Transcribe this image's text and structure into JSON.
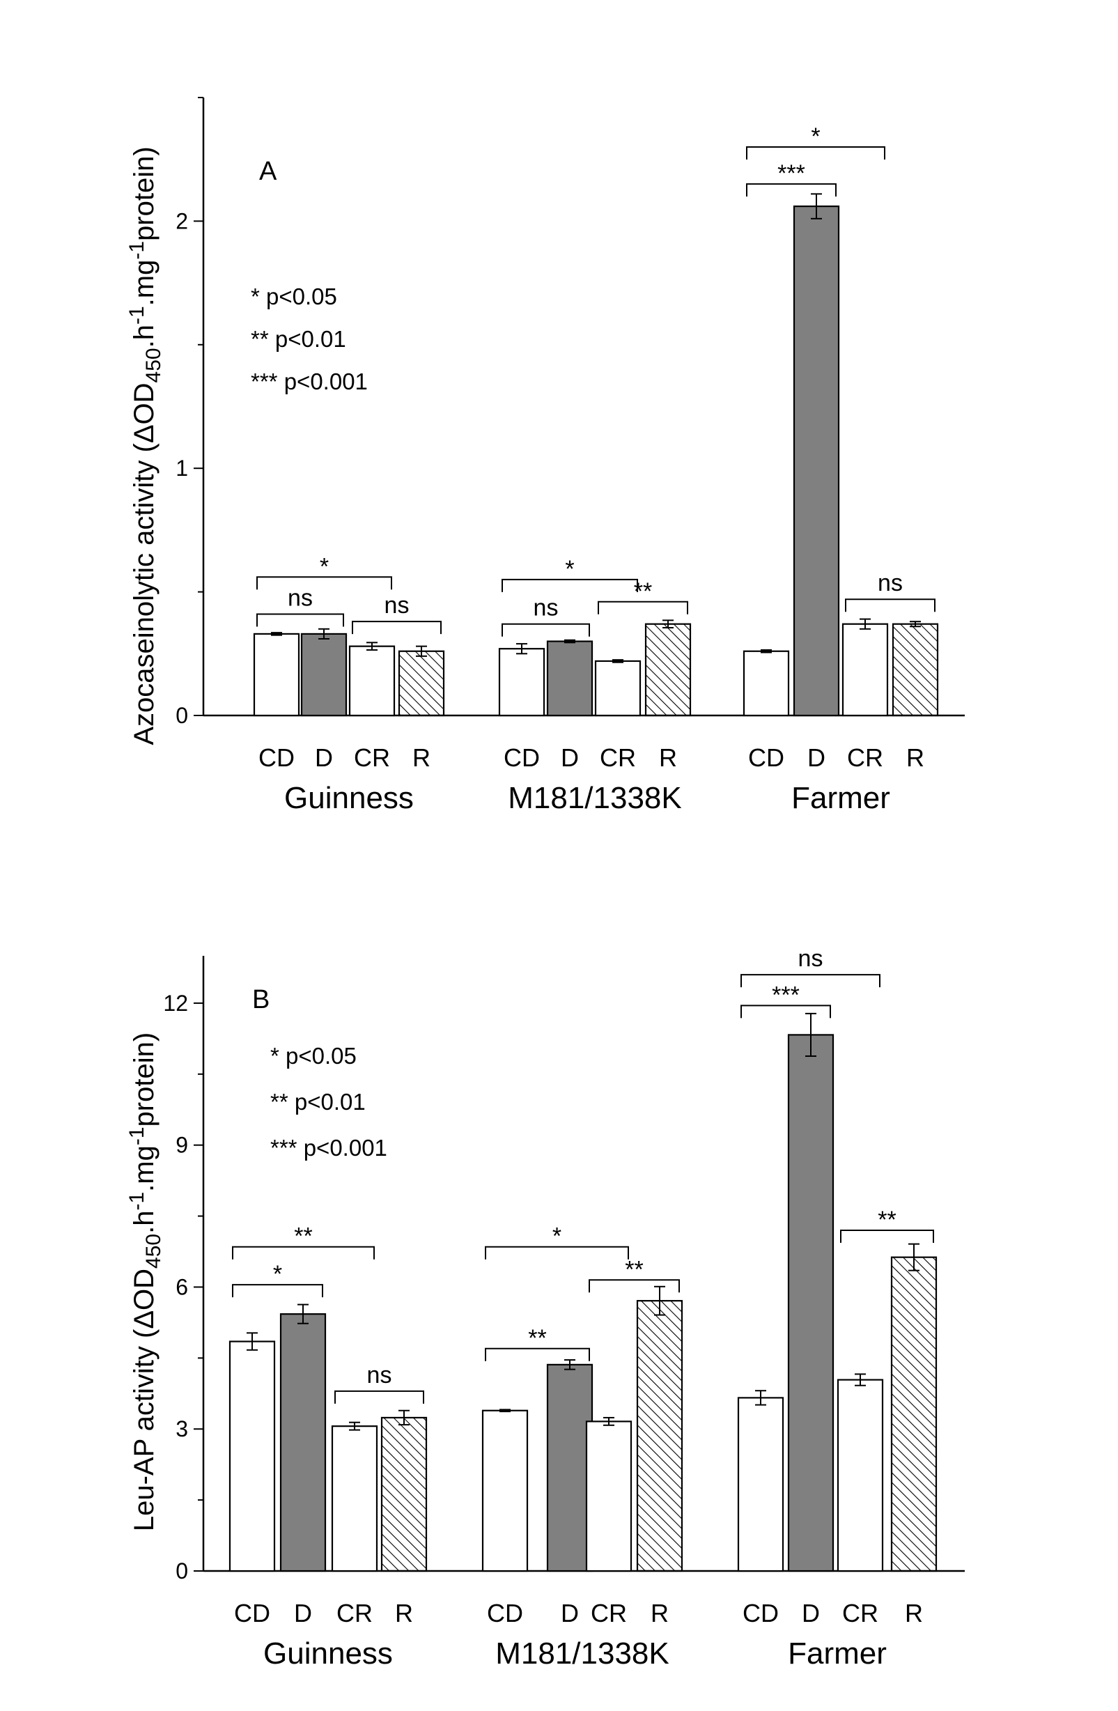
{
  "colors": {
    "control": "#ffffff",
    "drought": "#808080",
    "rehydration_hatch": "#000000",
    "axis": "#000000"
  },
  "chart_data": [
    {
      "type": "bar",
      "panel_label": "A",
      "ylabel": "Azocaseinolytic activity  (ΔOD450.h-1.mg-1protein)",
      "ylabel_parts": {
        "pre": "Azocaseinolytic activity  (ΔOD",
        "sub": "450",
        "mid1": ".h",
        "sup1": "-1",
        "mid2": ".mg",
        "sup2": "-1",
        "post": "protein)"
      },
      "ylim": [
        0,
        2.5
      ],
      "yticks": [
        0,
        1,
        2
      ],
      "ytick_labels": [
        "0",
        "1",
        "2"
      ],
      "legend": [
        "* p<0.05",
        "** p<0.01",
        "*** p<0.001"
      ],
      "groups": [
        {
          "name": "Guinness",
          "categories": [
            "CD",
            "D",
            "CR",
            "R"
          ],
          "values": [
            0.33,
            0.33,
            0.28,
            0.26
          ],
          "errors": [
            0.005,
            0.02,
            0.015,
            0.02
          ],
          "fills": [
            "white",
            "gray",
            "white",
            "hatch"
          ]
        },
        {
          "name": "M181/1338K",
          "categories": [
            "CD",
            "D",
            "CR",
            "R"
          ],
          "values": [
            0.27,
            0.3,
            0.22,
            0.37
          ],
          "errors": [
            0.02,
            0.005,
            0.005,
            0.015
          ],
          "fills": [
            "white",
            "gray",
            "white",
            "hatch"
          ]
        },
        {
          "name": "Farmer",
          "categories": [
            "CD",
            "D",
            "CR",
            "R"
          ],
          "values": [
            0.26,
            2.06,
            0.37,
            0.37
          ],
          "errors": [
            0.005,
            0.05,
            0.02,
            0.01
          ],
          "fills": [
            "white",
            "gray",
            "white",
            "hatch"
          ]
        }
      ],
      "significance": [
        {
          "group": 0,
          "from": 0,
          "to": 1,
          "y": 0.41,
          "label": "ns"
        },
        {
          "group": 0,
          "from": 0,
          "to": 2,
          "y": 0.56,
          "label": "*"
        },
        {
          "group": 0,
          "from": 2,
          "to": 3,
          "y": 0.38,
          "label": "ns"
        },
        {
          "group": 1,
          "from": 0,
          "to": 1,
          "y": 0.37,
          "label": "ns"
        },
        {
          "group": 1,
          "from": 0,
          "to": 2,
          "y": 0.55,
          "label": "*"
        },
        {
          "group": 1,
          "from": 2,
          "to": 3,
          "y": 0.46,
          "label": "**"
        },
        {
          "group": 2,
          "from": 0,
          "to": 1,
          "y": 2.15,
          "label": "***"
        },
        {
          "group": 2,
          "from": 0,
          "to": 2,
          "y": 2.3,
          "label": "*"
        },
        {
          "group": 2,
          "from": 2,
          "to": 3,
          "y": 0.47,
          "label": "ns"
        }
      ]
    },
    {
      "type": "bar",
      "panel_label": "B",
      "ylabel": "Leu-AP activity (ΔOD450.h-1.mg-1protein)",
      "ylabel_parts": {
        "pre": "Leu-AP activity (ΔOD",
        "sub": "450",
        "mid1": ".h",
        "sup1": "-1",
        "mid2": ".mg",
        "sup2": "-1",
        "post": "protein)"
      },
      "ylim": [
        0,
        13
      ],
      "yticks": [
        0,
        3,
        6,
        9,
        12
      ],
      "ytick_labels": [
        "0",
        "3",
        "6",
        "9",
        "12"
      ],
      "legend": [
        "* p<0.05",
        "** p<0.01",
        "*** p<0.001"
      ],
      "groups": [
        {
          "name": "Guinness",
          "categories": [
            "CD",
            "D",
            "CR",
            "R"
          ],
          "values": [
            4.85,
            5.43,
            3.06,
            3.24
          ],
          "errors": [
            0.18,
            0.2,
            0.08,
            0.15
          ],
          "fills": [
            "white",
            "gray",
            "white",
            "hatch"
          ]
        },
        {
          "name": "M181/1338K",
          "categories": [
            "CD",
            "D",
            "CR",
            "R"
          ],
          "values": [
            3.39,
            4.36,
            3.16,
            5.71
          ],
          "errors": [
            0.02,
            0.1,
            0.08,
            0.3
          ],
          "fills": [
            "white",
            "gray",
            "white",
            "hatch"
          ]
        },
        {
          "name": "Farmer",
          "categories": [
            "CD",
            "D",
            "CR",
            "R"
          ],
          "values": [
            3.66,
            11.33,
            4.04,
            6.63
          ],
          "errors": [
            0.15,
            0.45,
            0.12,
            0.28
          ],
          "fills": [
            "white",
            "gray",
            "white",
            "hatch"
          ]
        }
      ],
      "significance": [
        {
          "group": 0,
          "from": 0,
          "to": 1,
          "y": 6.05,
          "label": "*"
        },
        {
          "group": 0,
          "from": 0,
          "to": 2,
          "y": 6.85,
          "label": "**"
        },
        {
          "group": 0,
          "from": 2,
          "to": 3,
          "y": 3.8,
          "label": "ns"
        },
        {
          "group": 1,
          "from": 0,
          "to": 1,
          "y": 4.7,
          "label": "**"
        },
        {
          "group": 1,
          "from": 0,
          "to": 2,
          "y": 6.85,
          "label": "*"
        },
        {
          "group": 1,
          "from": 2,
          "to": 3,
          "y": 6.15,
          "label": "**"
        },
        {
          "group": 2,
          "from": 0,
          "to": 1,
          "y": 11.95,
          "label": "***"
        },
        {
          "group": 2,
          "from": 0,
          "to": 2,
          "y": 12.6,
          "label": "ns"
        },
        {
          "group": 2,
          "from": 2,
          "to": 3,
          "y": 7.2,
          "label": "**"
        }
      ]
    }
  ]
}
